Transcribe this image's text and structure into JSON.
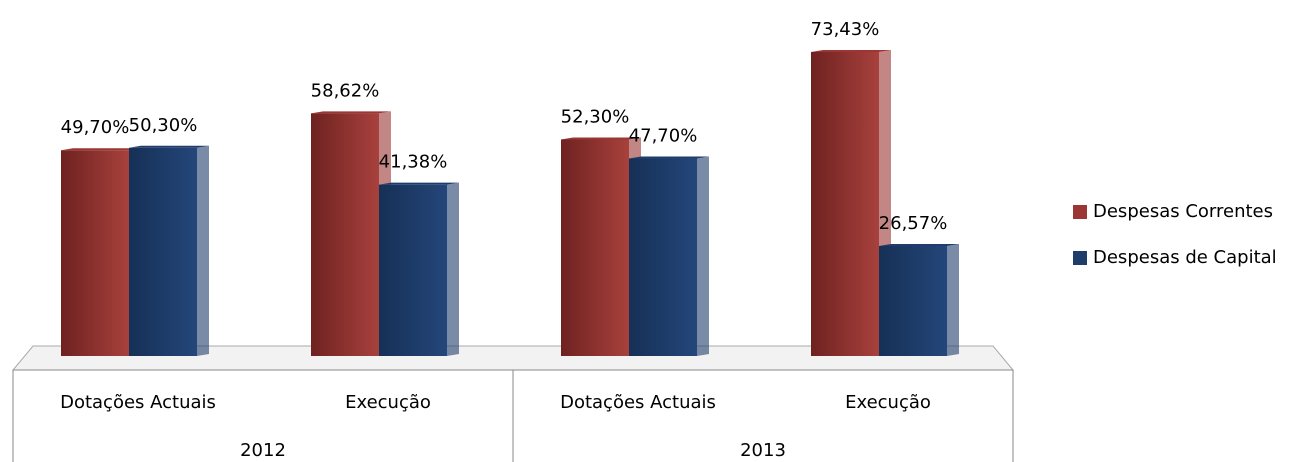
{
  "chart_data": {
    "type": "bar",
    "categories": [
      "Dotações Actuais",
      "Execução",
      "Dotações Actuais",
      "Execução"
    ],
    "groups": [
      "2012",
      "2013"
    ],
    "series": [
      {
        "name": "Despesas Correntes",
        "color": "#9a3633",
        "values": [
          49.7,
          58.62,
          52.3,
          73.43
        ],
        "value_labels": [
          "49,70%",
          "58,62%",
          "52,30%",
          "73,43%"
        ]
      },
      {
        "name": "Despesas de Capital",
        "color": "#1f3d6b",
        "values": [
          50.3,
          41.38,
          47.7,
          26.57
        ],
        "value_labels": [
          "50,30%",
          "41,38%",
          "47,70%",
          "26,57%"
        ]
      }
    ],
    "legend": "right"
  }
}
